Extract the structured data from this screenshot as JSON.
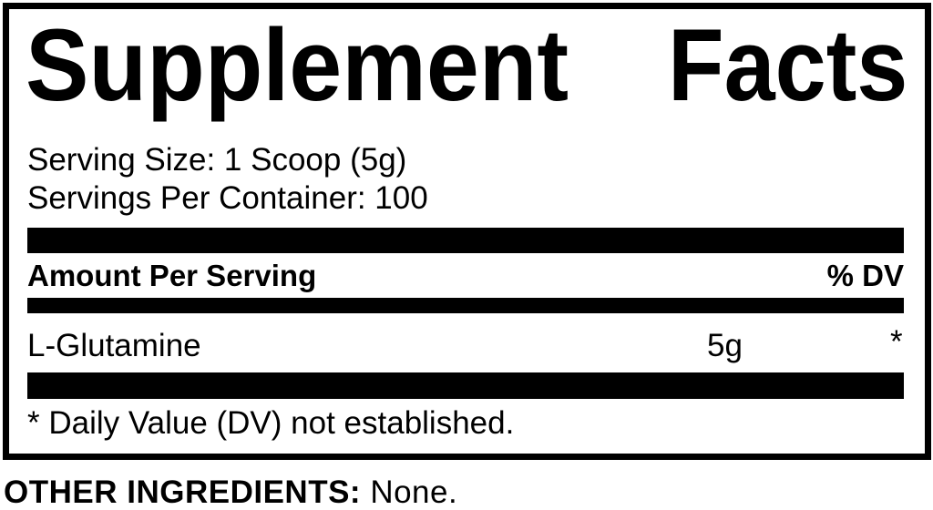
{
  "label": {
    "title_word1": "Supplement",
    "title_word2": "Facts",
    "serving_size": "Serving Size: 1 Scoop (5g)",
    "servings_per_container": "Servings Per Container: 100",
    "header_amount": "Amount Per Serving",
    "header_dv": "% DV",
    "ingredients": [
      {
        "name": "L-Glutamine",
        "amount": "5g",
        "dv": "*"
      }
    ],
    "footnote": "* Daily Value (DV) not established."
  },
  "other_ingredients": {
    "label": "OTHER INGREDIENTS:",
    "value": "None."
  }
}
